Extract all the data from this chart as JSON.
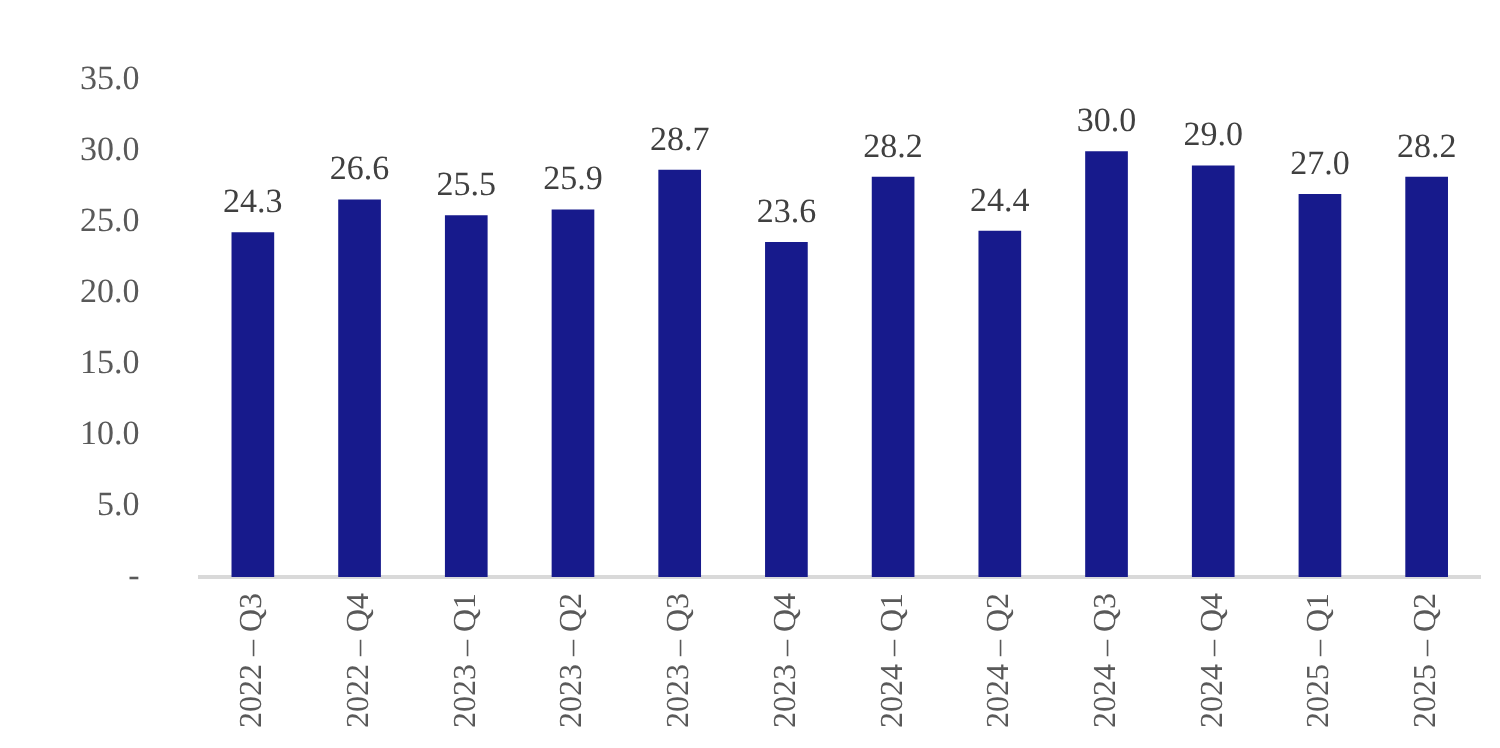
{
  "chart_data": {
    "type": "bar",
    "categories": [
      "2022 – Q3",
      "2022 – Q4",
      "2023 – Q1",
      "2023 – Q2",
      "2023 – Q3",
      "2023 – Q4",
      "2024 – Q1",
      "2024 – Q2",
      "2024 – Q3",
      "2024 – Q4",
      "2025 – Q1",
      "2025 – Q2"
    ],
    "values": [
      24.3,
      26.6,
      25.5,
      25.9,
      28.7,
      23.6,
      28.2,
      24.4,
      30.0,
      29.0,
      27.0,
      28.2
    ],
    "value_labels": [
      "24.3",
      "26.6",
      "25.5",
      "25.9",
      "28.7",
      "23.6",
      "28.2",
      "24.4",
      "30.0",
      "29.0",
      "27.0",
      "28.2"
    ],
    "color": "#171a8c",
    "ylim": [
      0,
      35
    ],
    "yticks": [
      {
        "value": 0,
        "label": "-"
      },
      {
        "value": 5,
        "label": "5.0"
      },
      {
        "value": 10,
        "label": "10.0"
      },
      {
        "value": 15,
        "label": "15.0"
      },
      {
        "value": 20,
        "label": "20.0"
      },
      {
        "value": 25,
        "label": "25.0"
      },
      {
        "value": 30,
        "label": "30.0"
      },
      {
        "value": 35,
        "label": "35.0"
      }
    ],
    "grid": false,
    "legend": false
  }
}
